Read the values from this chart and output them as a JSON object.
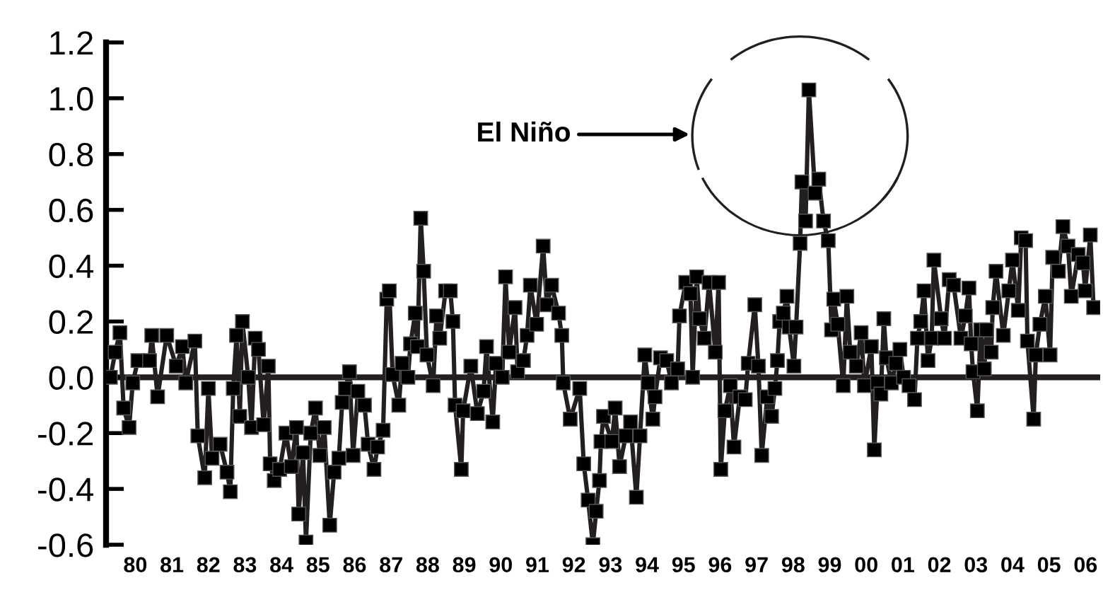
{
  "chart_data": {
    "type": "line",
    "marker": "square",
    "line_style": "solid",
    "grid": false,
    "legend": false,
    "xlim": [
      1979.2,
      2006.4
    ],
    "ylim": [
      -0.6,
      1.2
    ],
    "xticks": [
      {
        "value": 1980,
        "label": "80"
      },
      {
        "value": 1981,
        "label": "81"
      },
      {
        "value": 1982,
        "label": "82"
      },
      {
        "value": 1983,
        "label": "83"
      },
      {
        "value": 1984,
        "label": "84"
      },
      {
        "value": 1985,
        "label": "85"
      },
      {
        "value": 1986,
        "label": "86"
      },
      {
        "value": 1987,
        "label": "87"
      },
      {
        "value": 1988,
        "label": "88"
      },
      {
        "value": 1989,
        "label": "89"
      },
      {
        "value": 1990,
        "label": "90"
      },
      {
        "value": 1991,
        "label": "91"
      },
      {
        "value": 1992,
        "label": "92"
      },
      {
        "value": 1993,
        "label": "93"
      },
      {
        "value": 1994,
        "label": "94"
      },
      {
        "value": 1995,
        "label": "95"
      },
      {
        "value": 1996,
        "label": "96"
      },
      {
        "value": 1997,
        "label": "97"
      },
      {
        "value": 1998,
        "label": "98"
      },
      {
        "value": 1999,
        "label": "99"
      },
      {
        "value": 2000,
        "label": "00"
      },
      {
        "value": 2001,
        "label": "01"
      },
      {
        "value": 2002,
        "label": "02"
      },
      {
        "value": 2003,
        "label": "03"
      },
      {
        "value": 2004,
        "label": "04"
      },
      {
        "value": 2005,
        "label": "05"
      },
      {
        "value": 2006,
        "label": "06"
      }
    ],
    "yticks": [
      {
        "value": -0.6,
        "label": "-0.6"
      },
      {
        "value": -0.4,
        "label": "-0.4"
      },
      {
        "value": -0.2,
        "label": "-0.2"
      },
      {
        "value": 0,
        "label": "0.0"
      },
      {
        "value": 0.2,
        "label": "0.2"
      },
      {
        "value": 0.4,
        "label": "0.4"
      },
      {
        "value": 0.6,
        "label": "0.6"
      },
      {
        "value": 0.8,
        "label": "0.8"
      },
      {
        "value": 1.0,
        "label": "1.0"
      },
      {
        "value": 1.2,
        "label": "1.2"
      }
    ],
    "ref_lines": [
      {
        "axis": "y",
        "value": 0,
        "color": "#231f20"
      }
    ],
    "annotations": [
      "El Niño"
    ],
    "series": [
      {
        "color": "#231f20",
        "x": [
          1979.32,
          1979.45,
          1979.58,
          1979.68,
          1979.83,
          1979.93,
          1980.07,
          1980.39,
          1980.45,
          1980.61,
          1980.86,
          1981.12,
          1981.29,
          1981.38,
          1981.63,
          1981.71,
          1981.9,
          1982.0,
          1982.1,
          1982.32,
          1982.51,
          1982.6,
          1982.68,
          1982.77,
          1982.86,
          1982.93,
          1983.09,
          1983.18,
          1983.28,
          1983.37,
          1983.51,
          1983.64,
          1983.69,
          1983.8,
          1983.95,
          1984.12,
          1984.27,
          1984.41,
          1984.47,
          1984.59,
          1984.67,
          1984.8,
          1984.93,
          1985.05,
          1985.17,
          1985.32,
          1985.44,
          1985.57,
          1985.66,
          1985.75,
          1985.86,
          1985.96,
          1986.09,
          1986.27,
          1986.37,
          1986.53,
          1986.63,
          1986.78,
          1986.88,
          1986.95,
          1987.04,
          1987.21,
          1987.3,
          1987.46,
          1987.53,
          1987.66,
          1987.72,
          1987.81,
          1987.89,
          1987.98,
          1988.15,
          1988.24,
          1988.33,
          1988.49,
          1988.62,
          1988.69,
          1988.75,
          1988.92,
          1988.97,
          1989.18,
          1989.36,
          1989.53,
          1989.61,
          1989.78,
          1989.87,
          1990.04,
          1990.13,
          1990.23,
          1990.39,
          1990.46,
          1990.62,
          1990.72,
          1990.81,
          1990.98,
          1991.16,
          1991.26,
          1991.39,
          1991.58,
          1991.67,
          1991.71,
          1991.9,
          1992.16,
          1992.27,
          1992.39,
          1992.52,
          1992.61,
          1992.7,
          1992.74,
          1992.81,
          1993.04,
          1993.13,
          1993.25,
          1993.42,
          1993.55,
          1993.71,
          1993.81,
          1993.94,
          1994.03,
          1994.16,
          1994.22,
          1994.37,
          1994.54,
          1994.67,
          1994.84,
          1994.89,
          1995.06,
          1995.19,
          1995.25,
          1995.36,
          1995.44,
          1995.57,
          1995.7,
          1995.87,
          1995.96,
          1996.02,
          1996.13,
          1996.28,
          1996.38,
          1996.54,
          1996.69,
          1996.77,
          1996.95,
          1997.05,
          1997.14,
          1997.29,
          1997.41,
          1997.5,
          1997.57,
          1997.63,
          1997.73,
          1997.83,
          1997.89,
          1998.02,
          1998.08,
          1998.19,
          1998.24,
          1998.34,
          1998.43,
          1998.6,
          1998.7,
          1998.83,
          1998.96,
          1999.05,
          1999.11,
          1999.22,
          1999.37,
          1999.47,
          1999.56,
          1999.73,
          1999.86,
          1999.95,
          2000.14,
          2000.22,
          2000.31,
          2000.4,
          2000.48,
          2000.55,
          2000.69,
          2000.81,
          2000.92,
          2001.02,
          2001.17,
          2001.32,
          2001.4,
          2001.49,
          2001.58,
          2001.69,
          2001.79,
          2001.85,
          2002.05,
          2002.14,
          2002.27,
          2002.39,
          2002.59,
          2002.71,
          2002.81,
          2002.87,
          2002.92,
          2003.04,
          2003.13,
          2003.23,
          2003.29,
          2003.42,
          2003.46,
          2003.55,
          2003.75,
          2003.9,
          2004.0,
          2004.16,
          2004.24,
          2004.36,
          2004.41,
          2004.58,
          2004.64,
          2004.75,
          2004.9,
          2005.03,
          2005.1,
          2005.26,
          2005.38,
          2005.52,
          2005.61,
          2005.8,
          2005.93,
          2005.99,
          2006.13,
          2006.22
        ],
        "values": [
          0.0,
          0.09,
          0.16,
          -0.11,
          -0.18,
          -0.02,
          0.06,
          0.06,
          0.15,
          -0.07,
          0.15,
          0.04,
          0.11,
          -0.02,
          0.13,
          -0.21,
          -0.36,
          -0.04,
          -0.29,
          -0.24,
          -0.34,
          -0.41,
          -0.04,
          0.15,
          -0.14,
          0.2,
          0.0,
          -0.18,
          0.14,
          0.1,
          -0.17,
          0.04,
          -0.31,
          -0.37,
          -0.33,
          -0.2,
          -0.32,
          -0.18,
          -0.49,
          -0.27,
          -0.59,
          -0.2,
          -0.11,
          -0.28,
          -0.18,
          -0.53,
          -0.34,
          -0.29,
          -0.09,
          -0.04,
          0.02,
          -0.28,
          -0.05,
          -0.1,
          -0.24,
          -0.33,
          -0.25,
          -0.19,
          0.28,
          0.31,
          0.01,
          -0.1,
          0.05,
          0.0,
          0.12,
          0.23,
          0.11,
          0.57,
          0.38,
          0.08,
          -0.03,
          0.22,
          0.14,
          0.31,
          0.31,
          0.2,
          -0.1,
          -0.33,
          -0.12,
          0.04,
          -0.13,
          -0.05,
          0.11,
          -0.16,
          0.05,
          0.0,
          0.36,
          0.09,
          0.25,
          0.02,
          0.06,
          0.15,
          0.33,
          0.19,
          0.47,
          0.26,
          0.33,
          0.23,
          0.15,
          -0.02,
          -0.15,
          -0.04,
          -0.31,
          -0.44,
          -0.6,
          -0.48,
          -0.37,
          -0.23,
          -0.14,
          -0.23,
          -0.11,
          -0.32,
          -0.21,
          -0.16,
          -0.43,
          -0.21,
          0.08,
          -0.02,
          -0.15,
          -0.07,
          0.07,
          0.06,
          -0.02,
          0.03,
          0.22,
          0.34,
          0.3,
          0.0,
          0.36,
          0.21,
          0.14,
          0.34,
          0.09,
          0.34,
          -0.33,
          -0.12,
          -0.03,
          -0.25,
          -0.07,
          -0.08,
          0.05,
          0.26,
          0.04,
          -0.28,
          -0.07,
          -0.14,
          -0.04,
          0.06,
          0.2,
          0.23,
          0.29,
          0.18,
          0.04,
          0.18,
          0.48,
          0.7,
          0.56,
          1.03,
          0.66,
          0.71,
          0.56,
          0.49,
          0.17,
          0.28,
          0.19,
          -0.03,
          0.29,
          0.09,
          0.04,
          0.16,
          -0.03,
          0.11,
          -0.26,
          -0.02,
          -0.06,
          0.21,
          0.07,
          -0.02,
          0.05,
          0.1,
          0.0,
          -0.03,
          -0.08,
          0.14,
          0.2,
          0.31,
          0.06,
          0.14,
          0.42,
          0.21,
          0.14,
          0.35,
          0.33,
          0.14,
          0.22,
          0.32,
          0.12,
          0.02,
          -0.12,
          0.17,
          0.03,
          0.17,
          0.09,
          0.25,
          0.38,
          0.15,
          0.31,
          0.42,
          0.24,
          0.5,
          0.49,
          0.13,
          -0.15,
          0.08,
          0.19,
          0.29,
          0.08,
          0.43,
          0.38,
          0.54,
          0.47,
          0.29,
          0.44,
          0.41,
          0.31,
          0.51,
          0.25
        ]
      }
    ]
  }
}
